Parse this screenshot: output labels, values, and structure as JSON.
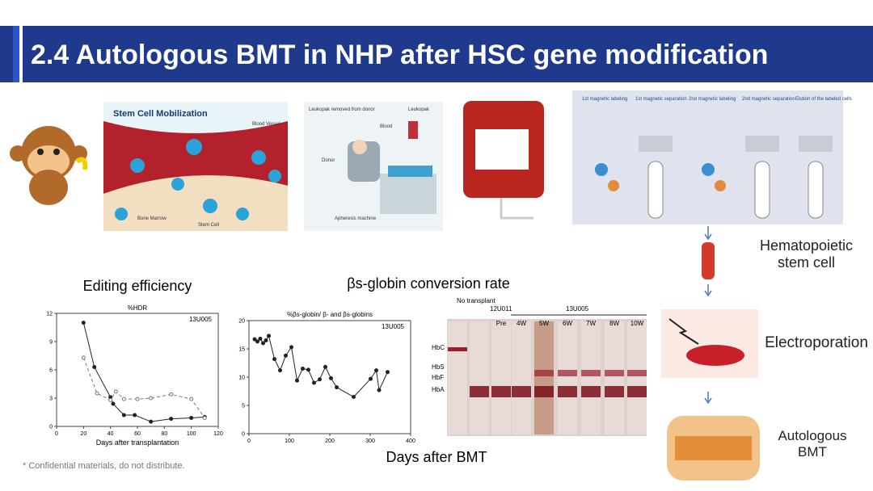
{
  "header": {
    "title": "2.4 Autologous BMT in NHP after HSC gene modification"
  },
  "mobilization": {
    "title": "Stem Cell Mobilization",
    "labels": [
      "Blood Vessel",
      "Bone Marrow",
      "Stem Cell"
    ]
  },
  "apheresis": {
    "labels": [
      "Leukopak removed from donor",
      "Leukopak",
      "Blood",
      "Donor",
      "Apheresis machine"
    ]
  },
  "magnetic": {
    "steps": [
      "1st magnetic labeling",
      "1st magnetic separation",
      "2nd magnetic labeling",
      "2nd magnetic separation",
      "Elution of the labeled cells"
    ]
  },
  "process": {
    "hsc": "Hematopoietic stem cell",
    "electroporation": "Electroporation",
    "bmt": "Autologous BMT"
  },
  "charts": [
    {
      "type": "line",
      "title": "Editing efficiency",
      "subtitle": "%HDR",
      "annotation": "13U005",
      "x_label": "Days after transplantation",
      "xlim": [
        0,
        120
      ],
      "xticks": [
        0,
        20,
        40,
        60,
        80,
        100,
        120
      ],
      "ylim": [
        0,
        12
      ],
      "yticks": [
        0,
        3,
        6,
        9,
        12
      ],
      "series": [
        {
          "color": "#222222",
          "dash": false,
          "x": [
            20,
            28,
            40,
            42,
            50,
            58,
            70,
            85,
            100,
            110
          ],
          "values": [
            11,
            6.3,
            3.1,
            2.4,
            1.2,
            1.2,
            0.5,
            0.8,
            0.9,
            1.0
          ]
        },
        {
          "color": "#777777",
          "dash": true,
          "x": [
            20,
            30,
            40,
            44,
            50,
            60,
            70,
            85,
            100,
            110
          ],
          "values": [
            7.3,
            3.5,
            2.8,
            3.7,
            2.9,
            2.9,
            3.0,
            3.4,
            2.9,
            0.9
          ]
        }
      ]
    },
    {
      "type": "line",
      "title": "βs-globin conversion rate",
      "subtitle": "%βs-globin/ β- and βs-globins",
      "annotation": "13U005",
      "x_label": "Days after BMT",
      "xlim": [
        0,
        400
      ],
      "xticks": [
        0,
        100,
        200,
        300,
        400
      ],
      "ylim": [
        0,
        20
      ],
      "yticks": [
        0,
        5,
        10,
        15,
        20
      ],
      "series": [
        {
          "color": "#222222",
          "dash": false,
          "x": [
            14,
            21,
            28,
            35,
            42,
            49,
            63,
            77,
            91,
            105,
            119,
            133,
            147,
            161,
            175,
            189,
            203,
            217,
            259,
            301,
            315,
            322,
            343
          ],
          "values": [
            16.7,
            16.3,
            16.8,
            16.0,
            16.5,
            17.3,
            13.2,
            11.2,
            13.8,
            15.3,
            9.4,
            11.5,
            11.3,
            9.0,
            9.6,
            11.8,
            9.8,
            8.2,
            6.5,
            9.7,
            11.2,
            7.7,
            10.9
          ]
        }
      ]
    }
  ],
  "gel": {
    "groups": [
      "No transplant",
      "12U011",
      "13U005"
    ],
    "lanes": [
      "Pre",
      "4W",
      "5W",
      "6W",
      "7W",
      "8W",
      "10W"
    ],
    "bands": [
      "HbC",
      "HbS",
      "HbF",
      "HbA"
    ]
  },
  "footnote": "* Confidential materials, do not distribute."
}
